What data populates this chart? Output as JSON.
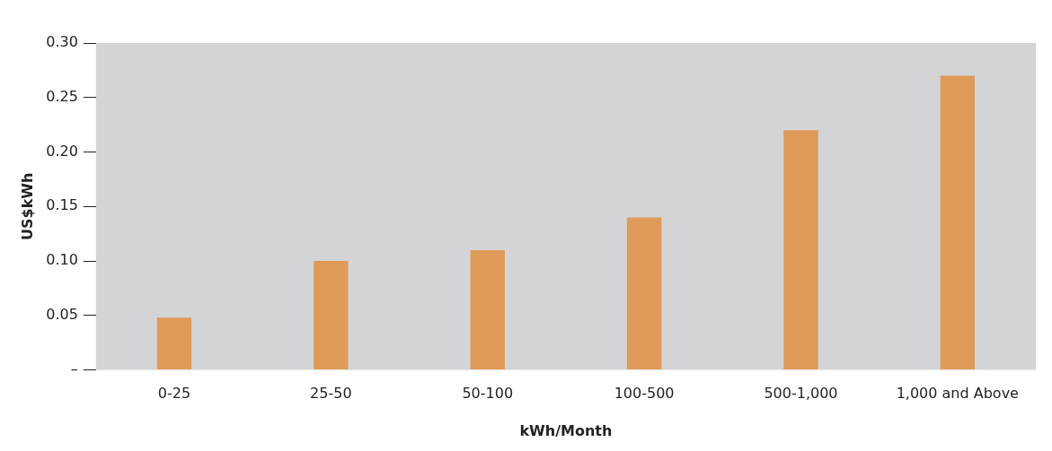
{
  "chart_data": {
    "type": "bar",
    "xlabel": "kWh/Month",
    "ylabel": "US$kWh",
    "categories": [
      "0-25",
      "25-50",
      "50-100",
      "100-500",
      "500-1,000",
      "1,000 and Above"
    ],
    "values": [
      0.048,
      0.1,
      0.11,
      0.14,
      0.22,
      0.27
    ],
    "color": "#df9a57",
    "ylim": [
      0,
      0.3
    ],
    "yticks": [
      {
        "value": 0,
        "label": "–"
      },
      0.05,
      {
        "value": 0.1,
        "label": "0.10"
      },
      0.15,
      {
        "value": 0.2,
        "label": "0.20"
      },
      0.25,
      {
        "value": 0.3,
        "label": "0.30"
      }
    ],
    "grid": false,
    "legend": false
  }
}
